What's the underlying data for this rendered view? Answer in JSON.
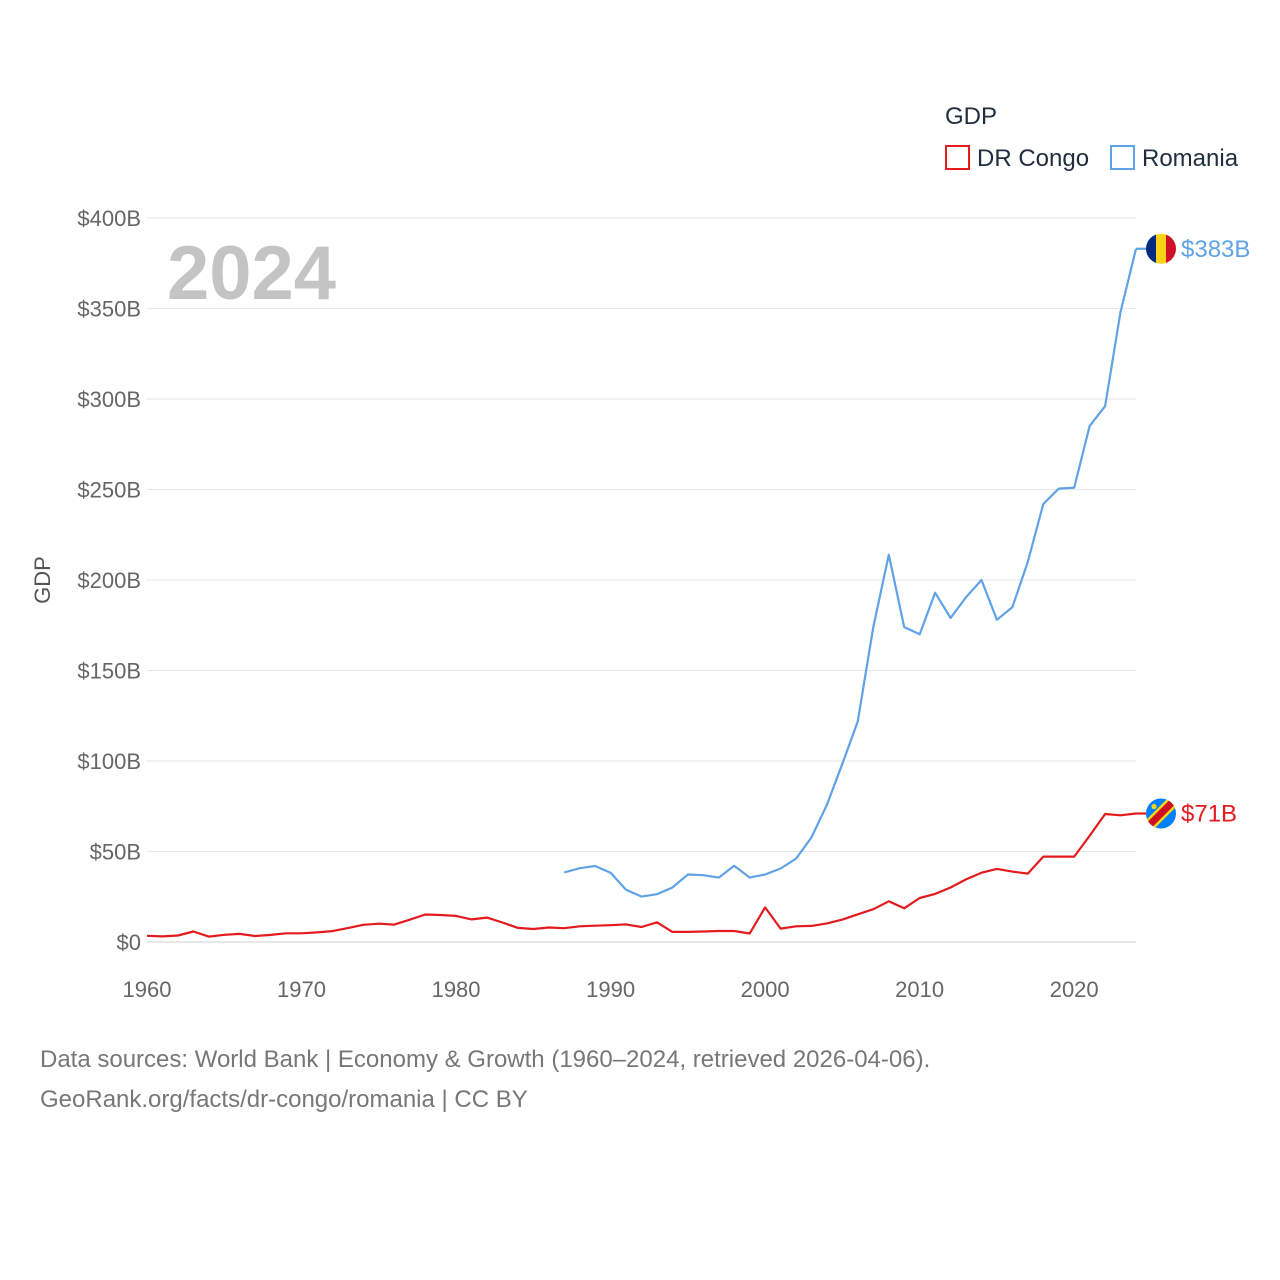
{
  "chart_data": {
    "type": "line",
    "title": "",
    "year_display": "2024",
    "ylabel": "GDP",
    "xlabel": "",
    "xlim": [
      1960,
      2024
    ],
    "ylim": [
      0,
      400
    ],
    "y_unit": "billion USD",
    "y_ticks": [
      0,
      50,
      100,
      150,
      200,
      250,
      300,
      350,
      400
    ],
    "y_tick_labels": [
      "$0",
      "$50B",
      "$100B",
      "$150B",
      "$200B",
      "$250B",
      "$300B",
      "$350B",
      "$400B"
    ],
    "x_ticks": [
      1960,
      1970,
      1980,
      1990,
      2000,
      2010,
      2020
    ],
    "x_tick_labels": [
      "1960",
      "1970",
      "1980",
      "1990",
      "2000",
      "2010",
      "2020"
    ],
    "grid": true,
    "legend": {
      "title": "GDP",
      "position": "top-right",
      "items": [
        {
          "label": "DR Congo",
          "color": "#e41a1c"
        },
        {
          "label": "Romania",
          "color": "#5fa2e6"
        }
      ]
    },
    "series": [
      {
        "name": "DR Congo",
        "color": "#e41a1c",
        "end_label": "$71B",
        "flag_icon": "dr-congo-flag-icon",
        "points": [
          [
            1960,
            3.4
          ],
          [
            1961,
            3.1
          ],
          [
            1962,
            3.6
          ],
          [
            1963,
            5.8
          ],
          [
            1964,
            3.0
          ],
          [
            1965,
            4.0
          ],
          [
            1966,
            4.5
          ],
          [
            1967,
            3.3
          ],
          [
            1968,
            3.9
          ],
          [
            1969,
            4.8
          ],
          [
            1970,
            4.8
          ],
          [
            1971,
            5.3
          ],
          [
            1972,
            6.0
          ],
          [
            1973,
            7.7
          ],
          [
            1974,
            9.5
          ],
          [
            1975,
            10.1
          ],
          [
            1976,
            9.6
          ],
          [
            1977,
            12.3
          ],
          [
            1978,
            15.2
          ],
          [
            1979,
            14.9
          ],
          [
            1980,
            14.4
          ],
          [
            1981,
            12.5
          ],
          [
            1982,
            13.5
          ],
          [
            1983,
            10.8
          ],
          [
            1984,
            7.8
          ],
          [
            1985,
            7.2
          ],
          [
            1986,
            8.0
          ],
          [
            1987,
            7.6
          ],
          [
            1988,
            8.7
          ],
          [
            1989,
            9.0
          ],
          [
            1990,
            9.3
          ],
          [
            1991,
            9.7
          ],
          [
            1992,
            8.3
          ],
          [
            1993,
            10.9
          ],
          [
            1994,
            5.6
          ],
          [
            1995,
            5.6
          ],
          [
            1996,
            5.8
          ],
          [
            1997,
            6.1
          ],
          [
            1998,
            6.1
          ],
          [
            1999,
            4.7
          ],
          [
            2000,
            19.1
          ],
          [
            2001,
            7.4
          ],
          [
            2002,
            8.7
          ],
          [
            2003,
            8.9
          ],
          [
            2004,
            10.3
          ],
          [
            2005,
            12.4
          ],
          [
            2006,
            15.3
          ],
          [
            2007,
            18.1
          ],
          [
            2008,
            22.5
          ],
          [
            2009,
            18.6
          ],
          [
            2010,
            24.3
          ],
          [
            2011,
            26.6
          ],
          [
            2012,
            30.1
          ],
          [
            2013,
            34.6
          ],
          [
            2014,
            38.3
          ],
          [
            2015,
            40.4
          ],
          [
            2016,
            38.9
          ],
          [
            2017,
            37.8
          ],
          [
            2018,
            47.2
          ],
          [
            2019,
            47.2
          ],
          [
            2020,
            47.2
          ],
          [
            2021,
            58.6
          ],
          [
            2022,
            70.7
          ],
          [
            2023,
            70.0
          ],
          [
            2024,
            71.0
          ]
        ]
      },
      {
        "name": "Romania",
        "color": "#5fa2e6",
        "end_label": "$383B",
        "flag_icon": "romania-flag-icon",
        "points": [
          [
            1987,
            38.4
          ],
          [
            1988,
            40.8
          ],
          [
            1989,
            42.0
          ],
          [
            1990,
            38.3
          ],
          [
            1991,
            28.9
          ],
          [
            1992,
            25.1
          ],
          [
            1993,
            26.4
          ],
          [
            1994,
            30.1
          ],
          [
            1995,
            37.3
          ],
          [
            1996,
            36.9
          ],
          [
            1997,
            35.6
          ],
          [
            1998,
            42.1
          ],
          [
            1999,
            35.6
          ],
          [
            2000,
            37.3
          ],
          [
            2001,
            40.6
          ],
          [
            2002,
            46.0
          ],
          [
            2003,
            57.8
          ],
          [
            2004,
            75.8
          ],
          [
            2005,
            98.5
          ],
          [
            2006,
            122.0
          ],
          [
            2007,
            174.0
          ],
          [
            2008,
            214.0
          ],
          [
            2009,
            174.0
          ],
          [
            2010,
            170.0
          ],
          [
            2011,
            193.0
          ],
          [
            2012,
            179.0
          ],
          [
            2013,
            190.5
          ],
          [
            2014,
            200.0
          ],
          [
            2015,
            178.0
          ],
          [
            2016,
            185.0
          ],
          [
            2017,
            210.0
          ],
          [
            2018,
            242.0
          ],
          [
            2019,
            250.5
          ],
          [
            2020,
            251.0
          ],
          [
            2021,
            285.0
          ],
          [
            2022,
            296.0
          ],
          [
            2023,
            348.0
          ],
          [
            2024,
            383.0
          ]
        ]
      }
    ]
  },
  "footer": {
    "line1": "Data sources: World Bank | Economy & Growth (1960–2024, retrieved 2026-04-06).",
    "line2": "GeoRank.org/facts/dr-congo/romania | CC BY"
  }
}
